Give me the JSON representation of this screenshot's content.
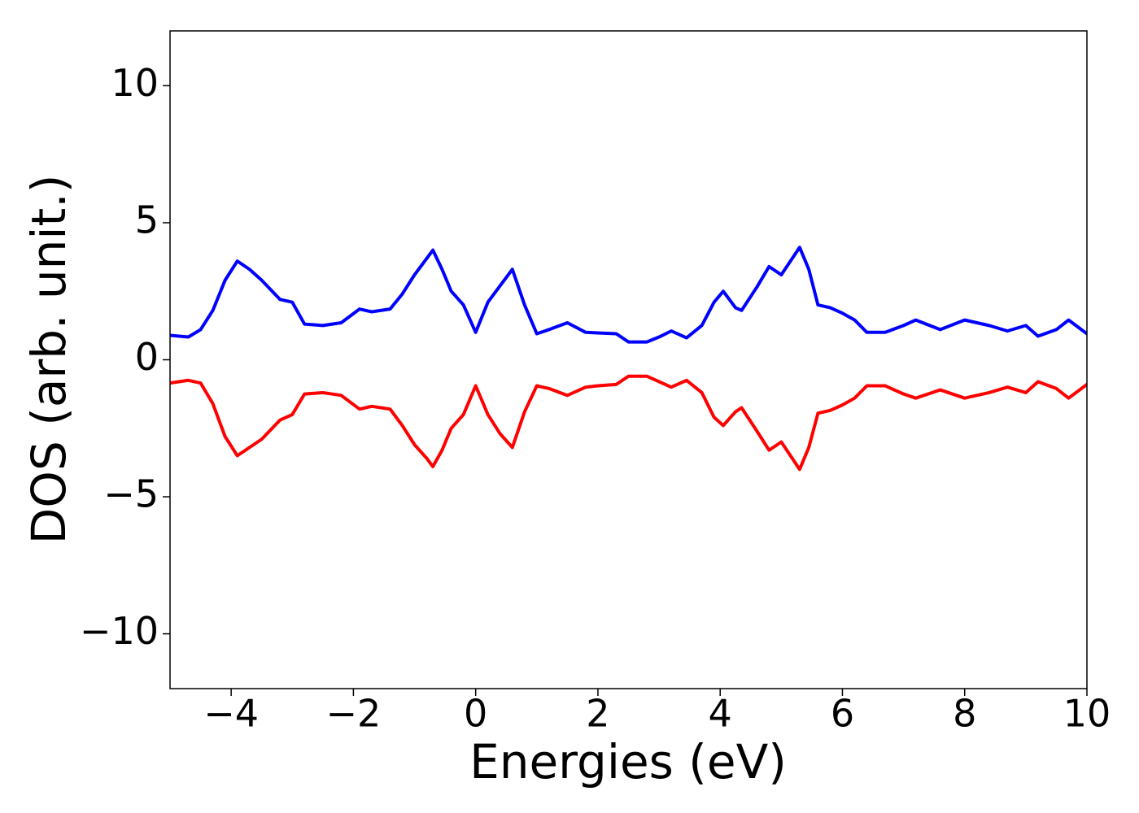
{
  "chart_data": {
    "type": "line",
    "xlabel": "Energies (eV)",
    "ylabel": "DOS (arb. unit.)",
    "xlim": [
      -5,
      10
    ],
    "ylim": [
      -12,
      12
    ],
    "xticks": [
      {
        "value": -4,
        "label": "−4"
      },
      {
        "value": -2,
        "label": "−2"
      },
      0,
      2,
      4,
      6,
      8,
      10
    ],
    "yticks": [
      {
        "value": -10,
        "label": "−10"
      },
      {
        "value": -5,
        "label": "−5"
      },
      0,
      5,
      10
    ],
    "grid": false,
    "x": [
      -5,
      -4.7,
      -4.5,
      -4.3,
      -4.1,
      -3.9,
      -3.7,
      -3.5,
      -3.2,
      -3.0,
      -2.8,
      -2.5,
      -2.2,
      -1.9,
      -1.7,
      -1.4,
      -1.2,
      -1.0,
      -0.8,
      -0.7,
      -0.55,
      -0.4,
      -0.2,
      0.0,
      0.2,
      0.4,
      0.6,
      0.8,
      1.0,
      1.2,
      1.5,
      1.8,
      2.0,
      2.3,
      2.5,
      2.8,
      3.0,
      3.2,
      3.45,
      3.7,
      3.9,
      4.05,
      4.25,
      4.35,
      4.6,
      4.8,
      5.0,
      5.15,
      5.3,
      5.45,
      5.6,
      5.8,
      6.0,
      6.2,
      6.4,
      6.7,
      7.0,
      7.2,
      7.6,
      8.0,
      8.4,
      8.7,
      9.0,
      9.2,
      9.5,
      9.7,
      10.0
    ],
    "series": [
      {
        "color": "#0000ff",
        "values": [
          0.89,
          0.83,
          1.1,
          1.8,
          2.9,
          3.6,
          3.3,
          2.9,
          2.2,
          2.1,
          1.3,
          1.25,
          1.35,
          1.85,
          1.75,
          1.85,
          2.4,
          3.1,
          3.7,
          4.0,
          3.3,
          2.5,
          2.0,
          1.0,
          2.1,
          2.7,
          3.3,
          2.0,
          0.95,
          1.1,
          1.35,
          1.0,
          0.98,
          0.95,
          0.65,
          0.65,
          0.83,
          1.05,
          0.8,
          1.25,
          2.1,
          2.5,
          1.9,
          1.8,
          2.65,
          3.4,
          3.1,
          3.6,
          4.1,
          3.3,
          2.0,
          1.9,
          1.7,
          1.45,
          1.0,
          1.0,
          1.25,
          1.45,
          1.1,
          1.45,
          1.25,
          1.05,
          1.25,
          0.86,
          1.1,
          1.45,
          0.95
        ]
      },
      {
        "color": "#ff0000",
        "values": [
          -0.85,
          -0.75,
          -0.85,
          -1.6,
          -2.8,
          -3.5,
          -3.2,
          -2.9,
          -2.2,
          -2.0,
          -1.25,
          -1.2,
          -1.3,
          -1.8,
          -1.7,
          -1.8,
          -2.4,
          -3.1,
          -3.6,
          -3.9,
          -3.3,
          -2.5,
          -2.0,
          -0.95,
          -2.0,
          -2.7,
          -3.2,
          -1.9,
          -0.95,
          -1.05,
          -1.3,
          -1.0,
          -0.95,
          -0.9,
          -0.6,
          -0.6,
          -0.8,
          -1.0,
          -0.75,
          -1.2,
          -2.1,
          -2.4,
          -1.9,
          -1.75,
          -2.6,
          -3.3,
          -3.0,
          -3.5,
          -4.0,
          -3.2,
          -1.95,
          -1.85,
          -1.65,
          -1.4,
          -0.95,
          -0.95,
          -1.25,
          -1.4,
          -1.1,
          -1.4,
          -1.2,
          -1.0,
          -1.2,
          -0.8,
          -1.05,
          -1.4,
          -0.9
        ]
      }
    ]
  }
}
